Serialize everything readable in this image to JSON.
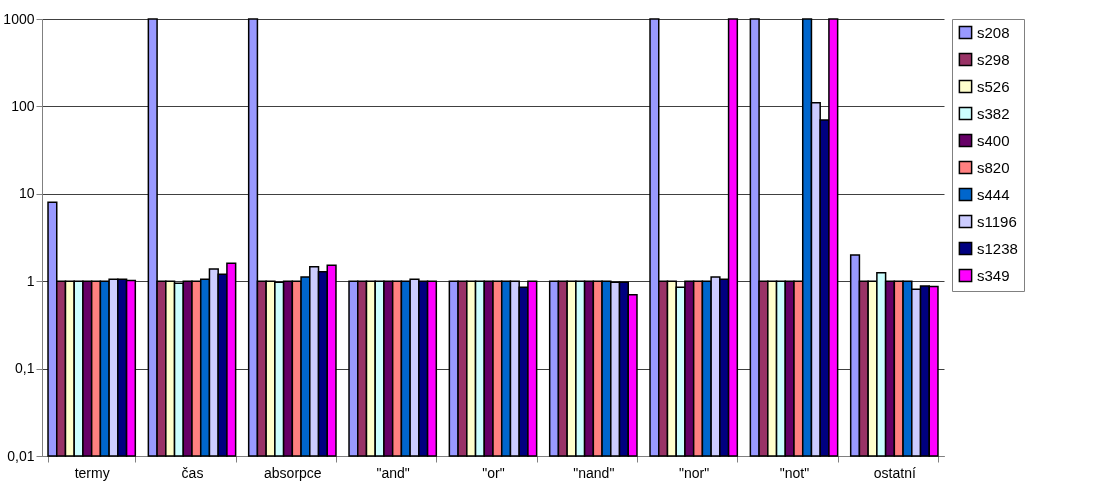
{
  "chart_data": {
    "type": "bar",
    "log": true,
    "grid": "y",
    "legend": "right",
    "categories": [
      "termy",
      "čas",
      "absorpce",
      "\"and\"",
      "\"or\"",
      "\"nand\"",
      "\"nor\"",
      "\"not\"",
      "ostatní"
    ],
    "ylim": [
      0.01,
      1000
    ],
    "yticks": [
      {
        "value": 0.01,
        "label": "0,01"
      },
      {
        "value": 0.1,
        "label": "0,1"
      },
      1,
      10,
      100,
      1000
    ],
    "series": [
      {
        "name": "s208",
        "color": "#9999ff",
        "values": [
          8,
          1000,
          1000,
          1,
          1,
          1,
          1000,
          1000,
          2
        ]
      },
      {
        "name": "s298",
        "color": "#993366",
        "values": [
          1,
          1,
          1,
          1,
          1,
          1,
          1,
          1,
          1
        ]
      },
      {
        "name": "s526",
        "color": "#ffffcc",
        "values": [
          1,
          1,
          1,
          1,
          1,
          1,
          1,
          1,
          1
        ]
      },
      {
        "name": "s382",
        "color": "#ccffff",
        "values": [
          1,
          0.95,
          0.97,
          1,
          1,
          1,
          0.85,
          1,
          1.25
        ]
      },
      {
        "name": "s400",
        "color": "#660066",
        "values": [
          1,
          1,
          1,
          1,
          1,
          1,
          1,
          1,
          1
        ]
      },
      {
        "name": "s820",
        "color": "#ff8080",
        "values": [
          1,
          1,
          1,
          1,
          1,
          1,
          1,
          1,
          1
        ]
      },
      {
        "name": "s444",
        "color": "#0066cc",
        "values": [
          1,
          1.05,
          1.12,
          1,
          1,
          1,
          1,
          1000,
          1
        ]
      },
      {
        "name": "s1196",
        "color": "#ccccff",
        "values": [
          1.05,
          1.38,
          1.46,
          1.05,
          1,
          0.97,
          1.12,
          110,
          0.81
        ]
      },
      {
        "name": "s1238",
        "color": "#000080",
        "values": [
          1.05,
          1.2,
          1.28,
          1,
          0.85,
          0.97,
          1.05,
          70,
          0.88
        ]
      },
      {
        "name": "s349",
        "color": "#ff00ff",
        "values": [
          1.02,
          1.6,
          1.52,
          1,
          1,
          0.7,
          1000,
          1000,
          0.87
        ]
      }
    ]
  }
}
